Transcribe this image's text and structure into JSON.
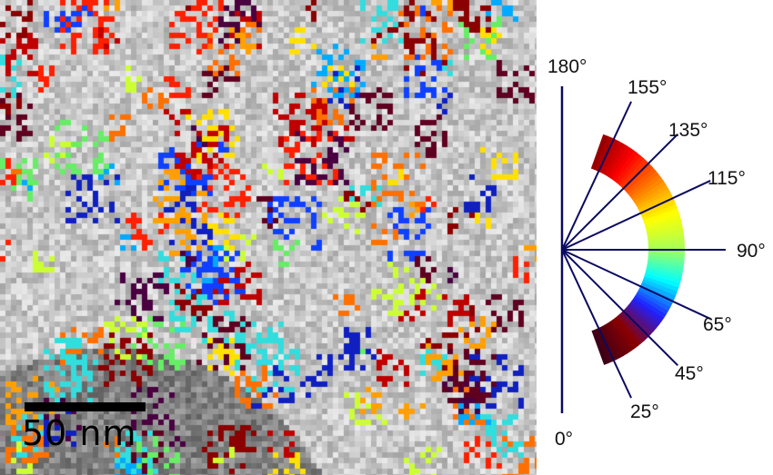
{
  "image": {
    "scale_bar_label": "50 nm"
  },
  "orientation_legend": {
    "angles": [
      {
        "value": 180,
        "label": "180°"
      },
      {
        "value": 155,
        "label": "155°"
      },
      {
        "value": 135,
        "label": "135°"
      },
      {
        "value": 115,
        "label": "115°"
      },
      {
        "value": 90,
        "label": "90°"
      },
      {
        "value": 65,
        "label": "65°"
      },
      {
        "value": 45,
        "label": "45°"
      },
      {
        "value": 25,
        "label": "25°"
      },
      {
        "value": 0,
        "label": "0°"
      }
    ],
    "colormap": [
      "#3d0018",
      "#8b0000",
      "#2020ff",
      "#00ffff",
      "#aaff55",
      "#ffff00",
      "#ff8000",
      "#ff0000",
      "#8b0000"
    ]
  }
}
